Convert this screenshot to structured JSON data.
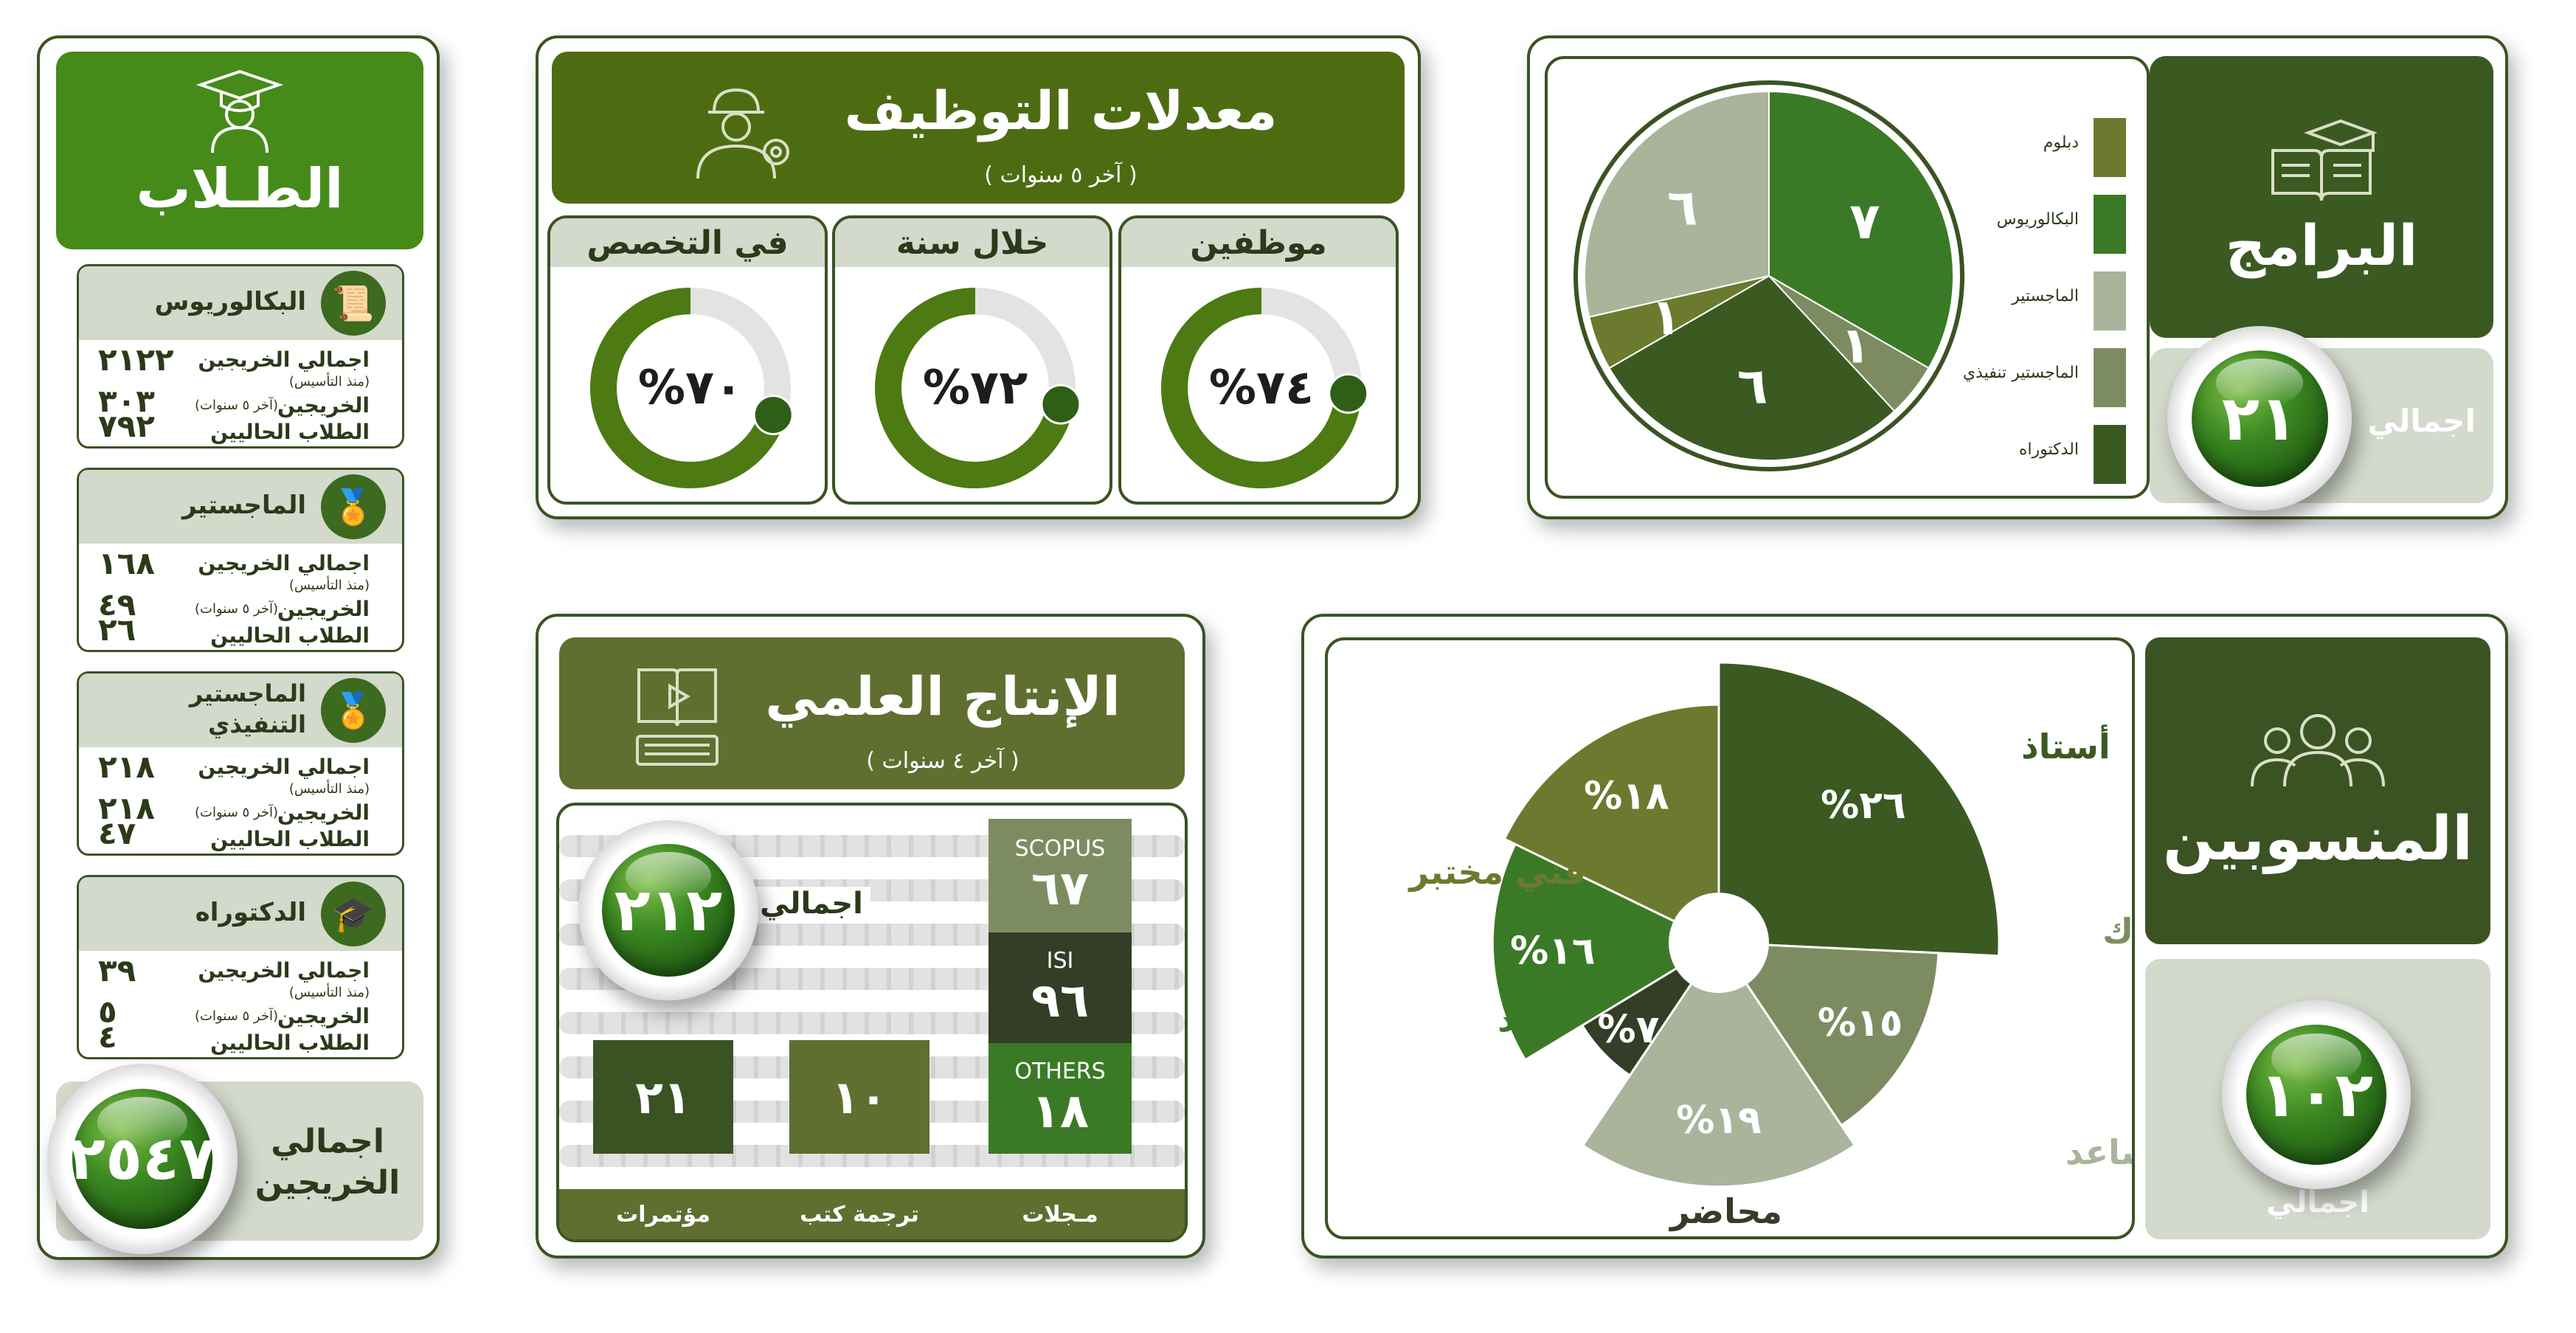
{
  "students": {
    "title": "الطـلاب",
    "levels": [
      {
        "name": "البكالوريوس",
        "total_label": "اجمالي الخريجين",
        "total_sub": "(منذ التأسيس)",
        "total": "٢١٢٢",
        "recent_label": "الخريجين",
        "recent_sub": "(آخر ٥ سنوات)",
        "recent": "٣٠٣",
        "current_label": "الطلاب الحاليين",
        "current": "٧٩٢"
      },
      {
        "name": "الماجستير",
        "total_label": "اجمالي الخريجين",
        "total_sub": "(منذ التأسيس)",
        "total": "١٦٨",
        "recent_label": "الخريجين",
        "recent_sub": "(آخر ٥ سنوات)",
        "recent": "٤٩",
        "current_label": "الطلاب الحاليين",
        "current": "٢٦"
      },
      {
        "name": "الماجستير التنفيذي",
        "total_label": "اجمالي الخريجين",
        "total_sub": "(منذ التأسيس)",
        "total": "٢١٨",
        "recent_label": "الخريجين",
        "recent_sub": "(آخر ٥ سنوات)",
        "recent": "٢١٨",
        "current_label": "الطلاب الحاليين",
        "current": "٤٧"
      },
      {
        "name": "الدكتوراه",
        "total_label": "اجمالي الخريجين",
        "total_sub": "(منذ التأسيس)",
        "total": "٣٩",
        "recent_label": "الخريجين",
        "recent_sub": "(آخر ٥ سنوات)",
        "recent": "٥",
        "current_label": "الطلاب الحاليين",
        "current": "٤"
      }
    ],
    "grand_total_label": "اجمالي الخريجين",
    "grand_total": "٢٥٤٧"
  },
  "employment": {
    "title": "معدلات التوظيف",
    "subtitle": "( آخر ٥ سنوات )",
    "gauges": [
      {
        "label": "موظفين",
        "text": "%٧٤",
        "value": 74
      },
      {
        "label": "خلال سنة",
        "text": "%٧٢",
        "value": 72
      },
      {
        "label": "في التخصص",
        "text": "%٧٠",
        "value": 70
      }
    ]
  },
  "programs": {
    "title": "البرامج",
    "total_label": "اجمالي",
    "total": "٢١"
  },
  "research": {
    "title": "الإنتاج العلمي",
    "subtitle": "( آخر ٤ سنوات )",
    "total_label": "اجمالي",
    "total": "٢١٢",
    "journals": [
      {
        "name": "SCOPUS",
        "value": "٦٧"
      },
      {
        "name": "ISI",
        "value": "٩٦"
      },
      {
        "name": "OTHERS",
        "value": "١٨"
      }
    ],
    "bars": [
      {
        "value": "٢١",
        "label": "مؤتمرات"
      },
      {
        "value": "١٠",
        "label": "ترجمة كتب"
      }
    ],
    "journals_label": "مـجلات"
  },
  "staff": {
    "title": "المنسوبين",
    "total_label": "اجمالي",
    "total": "١٠٢"
  },
  "chart_data": [
    {
      "type": "pie",
      "title": "البرامج",
      "slices": [
        {
          "label": "البكالوريوس",
          "value": 7,
          "text": "٧",
          "color": "#3a7a26"
        },
        {
          "label": "الماجستير تنفيذي",
          "value": 1,
          "text": "١",
          "color": "#7d8c60"
        },
        {
          "label": "الدكتوراه",
          "value": 6,
          "text": "٦",
          "color": "#3a5a22"
        },
        {
          "label": "دبلوم",
          "value": 1,
          "text": "١",
          "color": "#6b7a2e"
        },
        {
          "label": "الماجستير",
          "value": 6,
          "text": "٦",
          "color": "#a9b49a"
        }
      ],
      "legend": [
        "دبلوم",
        "البكالوريوس",
        "الماجستير",
        "الماجستير تنفيذي",
        "الدكتوراه"
      ],
      "legend_colors": [
        "#6b7a2e",
        "#3a7a26",
        "#a9b49a",
        "#7d8c60",
        "#3a5a22"
      ],
      "legend_position": "right"
    },
    {
      "type": "pie",
      "title": "المنسوبين",
      "variant": "rose",
      "slices": [
        {
          "label": "أستاذ",
          "value": 26,
          "text": "%٢٦",
          "color": "#3a5a22",
          "label_color": "#3a5a22"
        },
        {
          "label": "أستاذ مشارك",
          "value": 15,
          "text": "%١٥",
          "color": "#7d8c60",
          "label_color": "#7d8c60"
        },
        {
          "label": "أستاذ مساعد",
          "value": 19,
          "text": "%١٩",
          "color": "#a9b49a",
          "label_color": "#a9b49a"
        },
        {
          "label": "محاضر",
          "value": 7,
          "text": "%٧",
          "color": "#343d26",
          "label_color": "#343d26"
        },
        {
          "label": "معيد",
          "value": 16,
          "text": "%١٦",
          "color": "#3a7a26",
          "label_color": "#3a7a26"
        },
        {
          "label": "فني مختبر",
          "value": 18,
          "text": "%١٨",
          "color": "#6b7a2e",
          "label_color": "#6b7a2e"
        }
      ]
    }
  ]
}
